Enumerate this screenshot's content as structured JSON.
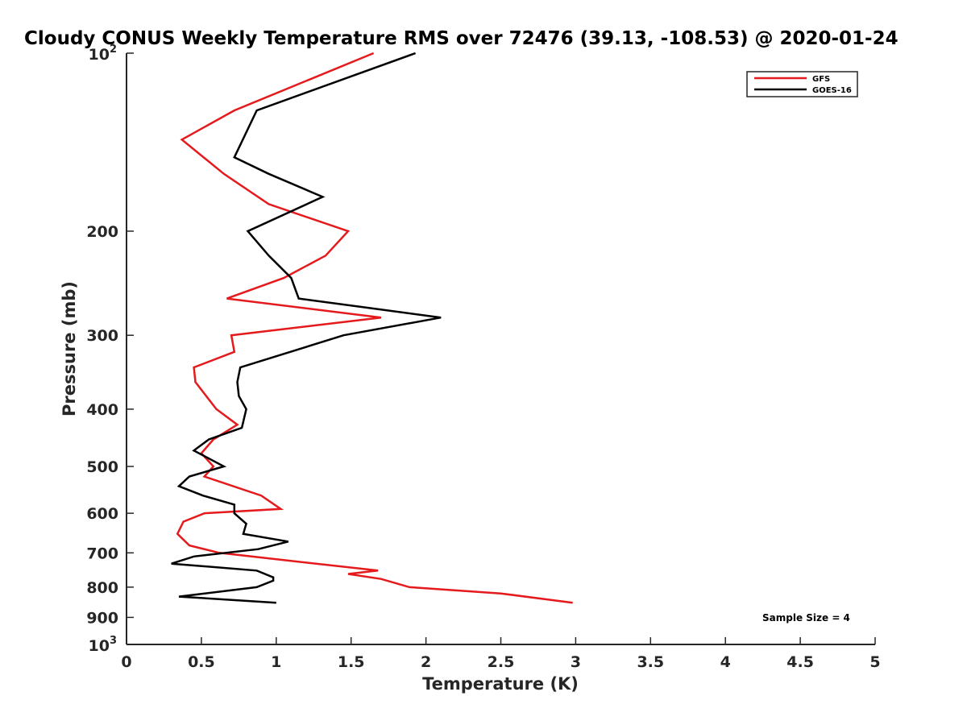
{
  "chart_data": {
    "type": "line",
    "title": "Cloudy CONUS Weekly Temperature RMS over 72476 (39.13, -108.53) @ 2020-01-24",
    "xlabel": "Temperature (K)",
    "ylabel": "Pressure (mb)",
    "xlim": [
      0,
      5
    ],
    "ylim": [
      100,
      1000
    ],
    "y_scale": "log",
    "y_reversed": true,
    "grid": false,
    "x_ticks": [
      {
        "value": 0,
        "label": "0"
      },
      {
        "value": 0.5,
        "label": "0.5"
      },
      {
        "value": 1,
        "label": "1"
      },
      {
        "value": 1.5,
        "label": "1.5"
      },
      {
        "value": 2,
        "label": "2"
      },
      {
        "value": 2.5,
        "label": "2.5"
      },
      {
        "value": 3,
        "label": "3"
      },
      {
        "value": 3.5,
        "label": "3.5"
      },
      {
        "value": 4,
        "label": "4"
      },
      {
        "value": 4.5,
        "label": "4.5"
      },
      {
        "value": 5,
        "label": "5"
      }
    ],
    "y_ticks": [
      {
        "value": 100,
        "label": "10",
        "sup": "2"
      },
      {
        "value": 200,
        "label": "200"
      },
      {
        "value": 300,
        "label": "300"
      },
      {
        "value": 400,
        "label": "400"
      },
      {
        "value": 500,
        "label": "500"
      },
      {
        "value": 600,
        "label": "600"
      },
      {
        "value": 700,
        "label": "700"
      },
      {
        "value": 800,
        "label": "800"
      },
      {
        "value": 900,
        "label": "900"
      },
      {
        "value": 1000,
        "label": "10",
        "sup": "3"
      }
    ],
    "legend_position": "top-right",
    "annotation": "Sample Size = 4",
    "series": [
      {
        "name": "GFS",
        "color": "#e41a1c",
        "points": [
          [
            1.65,
            100
          ],
          [
            0.72,
            125
          ],
          [
            0.37,
            140
          ],
          [
            0.65,
            160
          ],
          [
            0.95,
            180
          ],
          [
            1.48,
            200
          ],
          [
            1.33,
            220
          ],
          [
            1.05,
            240
          ],
          [
            0.67,
            260
          ],
          [
            1.7,
            280
          ],
          [
            0.7,
            300
          ],
          [
            0.72,
            320
          ],
          [
            0.45,
            340
          ],
          [
            0.46,
            360
          ],
          [
            0.6,
            400
          ],
          [
            0.74,
            425
          ],
          [
            0.58,
            450
          ],
          [
            0.5,
            475
          ],
          [
            0.58,
            500
          ],
          [
            0.52,
            520
          ],
          [
            0.9,
            560
          ],
          [
            1.03,
            590
          ],
          [
            0.52,
            600
          ],
          [
            0.38,
            620
          ],
          [
            0.34,
            650
          ],
          [
            0.42,
            680
          ],
          [
            0.62,
            700
          ],
          [
            1.05,
            720
          ],
          [
            1.68,
            750
          ],
          [
            1.48,
            760
          ],
          [
            1.7,
            775
          ],
          [
            1.89,
            800
          ],
          [
            2.5,
            820
          ],
          [
            2.98,
            850
          ]
        ]
      },
      {
        "name": "GOES-16",
        "color": "#000000",
        "points": [
          [
            1.93,
            100
          ],
          [
            0.87,
            125
          ],
          [
            0.72,
            150
          ],
          [
            0.95,
            160
          ],
          [
            1.31,
            175
          ],
          [
            0.81,
            200
          ],
          [
            0.95,
            220
          ],
          [
            1.1,
            240
          ],
          [
            1.15,
            260
          ],
          [
            2.1,
            280
          ],
          [
            1.45,
            300
          ],
          [
            0.76,
            340
          ],
          [
            0.74,
            360
          ],
          [
            0.75,
            380
          ],
          [
            0.8,
            400
          ],
          [
            0.77,
            430
          ],
          [
            0.55,
            450
          ],
          [
            0.45,
            470
          ],
          [
            0.65,
            500
          ],
          [
            0.42,
            520
          ],
          [
            0.35,
            540
          ],
          [
            0.51,
            560
          ],
          [
            0.72,
            580
          ],
          [
            0.72,
            600
          ],
          [
            0.8,
            625
          ],
          [
            0.78,
            650
          ],
          [
            1.08,
            670
          ],
          [
            0.88,
            690
          ],
          [
            0.45,
            710
          ],
          [
            0.3,
            730
          ],
          [
            0.87,
            750
          ],
          [
            0.98,
            770
          ],
          [
            0.98,
            780
          ],
          [
            0.87,
            800
          ],
          [
            0.35,
            830
          ],
          [
            1.0,
            850
          ]
        ]
      }
    ]
  }
}
